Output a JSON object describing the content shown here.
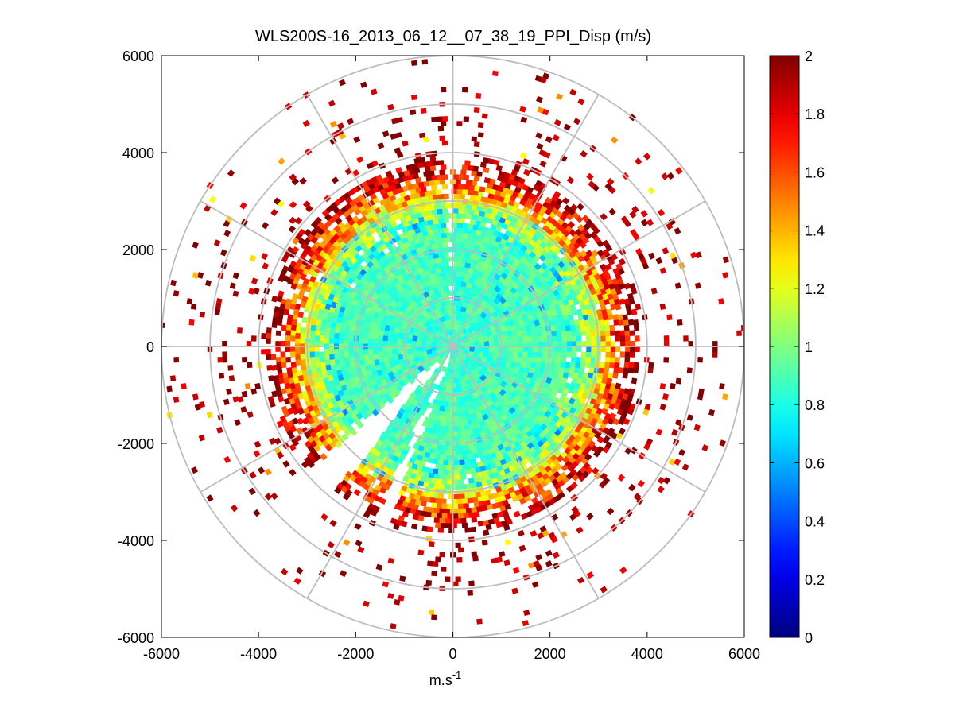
{
  "chart_data": {
    "type": "heatmap",
    "subtype": "polar-ppi",
    "title": "WLS200S-16_2013_06_12__07_38_19_PPI_Disp (m/s)",
    "xlabel_main": "m.s",
    "xlabel_sup": "-1",
    "ylabel": "",
    "xlim": [
      -6000,
      6000
    ],
    "ylim": [
      -6000,
      6000
    ],
    "x_ticks": [
      -6000,
      -4000,
      -2000,
      0,
      2000,
      4000,
      6000
    ],
    "y_ticks": [
      6000,
      4000,
      2000,
      0,
      -2000,
      -4000,
      -6000
    ],
    "x_tick_labels": [
      "-6000",
      "-4000",
      "-2000",
      "0",
      "2000",
      "4000",
      "6000"
    ],
    "y_tick_labels": [
      "6000",
      "4000",
      "2000",
      "0",
      "-2000",
      "-4000",
      "-6000"
    ],
    "polar_grid": {
      "ring_radii": [
        1000,
        2000,
        3000,
        4000,
        5000,
        6000
      ],
      "spoke_angles_deg": [
        0,
        30,
        60,
        90,
        120,
        150,
        180,
        210,
        240,
        270,
        300,
        330
      ]
    },
    "data_extent": {
      "core_radius": 2800,
      "dense_edge_radius": 3900,
      "sparse_max_radius": 6000,
      "gap_angles_deg": [
        {
          "center": 91,
          "width": 2
        },
        {
          "center": 226,
          "width": 10
        },
        {
          "center": 248,
          "width": 4
        }
      ]
    },
    "colorbar": {
      "colormap": "jet",
      "clim": [
        0,
        2
      ],
      "ticks": [
        0,
        0.2,
        0.4,
        0.6,
        0.8,
        1,
        1.2,
        1.4,
        1.6,
        1.8,
        2
      ],
      "tick_labels": [
        "0",
        "0.2",
        "0.4",
        "0.6",
        "0.8",
        "1",
        "1.2",
        "1.4",
        "1.6",
        "1.8",
        "2"
      ]
    },
    "value_profile": {
      "core_value": 0.85,
      "transition_value": 1.2,
      "edge_value": 2.0
    }
  }
}
